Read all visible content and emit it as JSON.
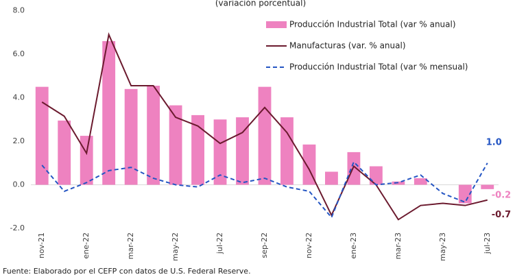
{
  "chart_data": {
    "type": "bar_line",
    "subtitle": "(variación porcentual)",
    "source": "Fuente: Elaborado por el CEFP con datos de U.S. Federal Reserve.",
    "categories": [
      "nov-21",
      null,
      "ene-22",
      null,
      "mar-22",
      null,
      "may-22",
      null,
      "jul-22",
      null,
      "sep-22",
      null,
      "nov-22",
      null,
      "ene-23",
      null,
      "mar-23",
      null,
      "may-23",
      null,
      "jul-23"
    ],
    "series": [
      {
        "name": "Producción Industrial Total (var % anual)",
        "kind": "bar",
        "color": "#ee82c0",
        "values": [
          4.5,
          2.95,
          2.25,
          6.6,
          4.4,
          4.55,
          3.65,
          3.2,
          3.0,
          3.1,
          4.5,
          3.1,
          1.85,
          0.6,
          1.5,
          0.85,
          0.15,
          0.3,
          0.0,
          -0.85,
          -0.2
        ],
        "value_labels": [
          null,
          null,
          null,
          null,
          null,
          null,
          null,
          null,
          null,
          null,
          null,
          null,
          null,
          null,
          null,
          null,
          null,
          null,
          null,
          null,
          "-0.2"
        ]
      },
      {
        "name": "Manufacturas (var. % anual)",
        "kind": "line",
        "color": "#6b1a2e",
        "values": [
          3.8,
          3.15,
          1.45,
          6.9,
          4.55,
          4.55,
          3.1,
          2.7,
          1.9,
          2.4,
          3.55,
          2.4,
          0.7,
          -1.4,
          0.85,
          0.0,
          -1.6,
          -0.95,
          -0.85,
          -0.95,
          -0.7
        ],
        "value_labels": [
          null,
          null,
          null,
          null,
          null,
          null,
          null,
          null,
          null,
          null,
          null,
          null,
          null,
          null,
          null,
          null,
          null,
          null,
          null,
          null,
          "-0.7"
        ]
      },
      {
        "name": "Producción Industrial Total (var % mensual)",
        "kind": "dashed",
        "color": "#2455c3",
        "values": [
          0.9,
          -0.3,
          0.1,
          0.65,
          0.8,
          0.3,
          0.0,
          -0.1,
          0.45,
          0.1,
          0.3,
          -0.1,
          -0.3,
          -1.5,
          1.05,
          0.0,
          0.1,
          0.45,
          -0.4,
          -0.8,
          1.0
        ],
        "value_labels": [
          null,
          null,
          null,
          null,
          null,
          null,
          null,
          null,
          null,
          null,
          null,
          null,
          null,
          null,
          null,
          null,
          null,
          null,
          null,
          null,
          "1.0"
        ]
      }
    ],
    "ylim": [
      -2,
      8
    ],
    "yticks": [
      {
        "value": -2,
        "label": "-2.0"
      },
      {
        "value": 0,
        "label": "0.0"
      },
      {
        "value": 2,
        "label": "2.0"
      },
      {
        "value": 4,
        "label": "4.0"
      },
      {
        "value": 6,
        "label": "6.0"
      },
      {
        "value": 8,
        "label": "8.0"
      }
    ],
    "grid": false,
    "legend": "upper right"
  }
}
